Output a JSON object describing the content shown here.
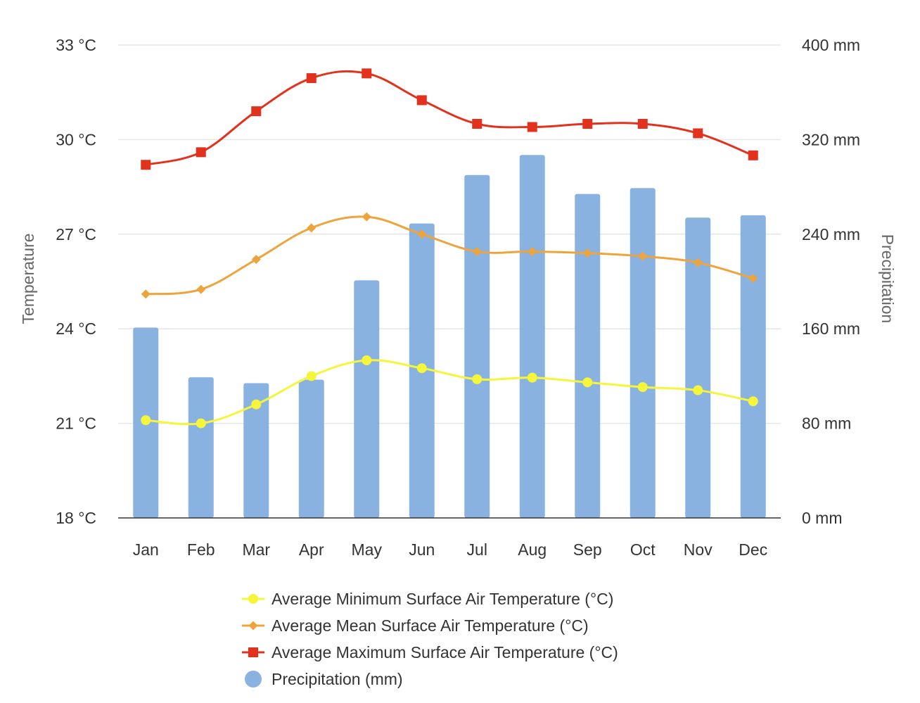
{
  "chart_data": {
    "type": "bar+line",
    "categories": [
      "Jan",
      "Feb",
      "Mar",
      "Apr",
      "May",
      "Jun",
      "Jul",
      "Aug",
      "Sep",
      "Oct",
      "Nov",
      "Dec"
    ],
    "y_left": {
      "label": "Temperature",
      "range": [
        18,
        33
      ],
      "ticks": [
        18,
        21,
        24,
        27,
        30,
        33
      ],
      "tick_labels": [
        "18 °C",
        "21 °C",
        "24 °C",
        "27 °C",
        "30 °C",
        "33 °C"
      ]
    },
    "y_right": {
      "label": "Precipitation",
      "range": [
        0,
        400
      ],
      "ticks": [
        0,
        80,
        160,
        240,
        320,
        400
      ],
      "tick_labels": [
        "0 mm",
        "80 mm",
        "160 mm",
        "240 mm",
        "320 mm",
        "400 mm"
      ]
    },
    "grid": true,
    "legend_position": "bottom",
    "series": [
      {
        "name": "Average Minimum Surface Air Temperature (°C)",
        "type": "line",
        "axis": "left",
        "marker": "circle",
        "color": "#f5f53c",
        "values": [
          21.1,
          21.0,
          21.6,
          22.5,
          23.0,
          22.75,
          22.4,
          22.45,
          22.3,
          22.15,
          22.05,
          21.7
        ]
      },
      {
        "name": "Average Mean Surface Air Temperature (°C)",
        "type": "line",
        "axis": "left",
        "marker": "diamond",
        "color": "#eda43d",
        "values": [
          25.1,
          25.25,
          26.2,
          27.2,
          27.55,
          27.0,
          26.45,
          26.45,
          26.4,
          26.3,
          26.1,
          25.6
        ]
      },
      {
        "name": "Average Maximum Surface Air Temperature (°C)",
        "type": "line",
        "axis": "left",
        "marker": "square",
        "color": "#e2311d",
        "values": [
          29.2,
          29.6,
          30.9,
          31.95,
          32.1,
          31.25,
          30.5,
          30.4,
          30.5,
          30.5,
          30.2,
          29.5
        ]
      },
      {
        "name": "Precipitation (mm)",
        "type": "bar",
        "axis": "right",
        "marker": "circle",
        "color": "#89b2e0",
        "values": [
          161,
          119,
          114,
          117,
          201,
          249,
          290,
          307,
          274,
          279,
          254,
          256
        ]
      }
    ]
  }
}
